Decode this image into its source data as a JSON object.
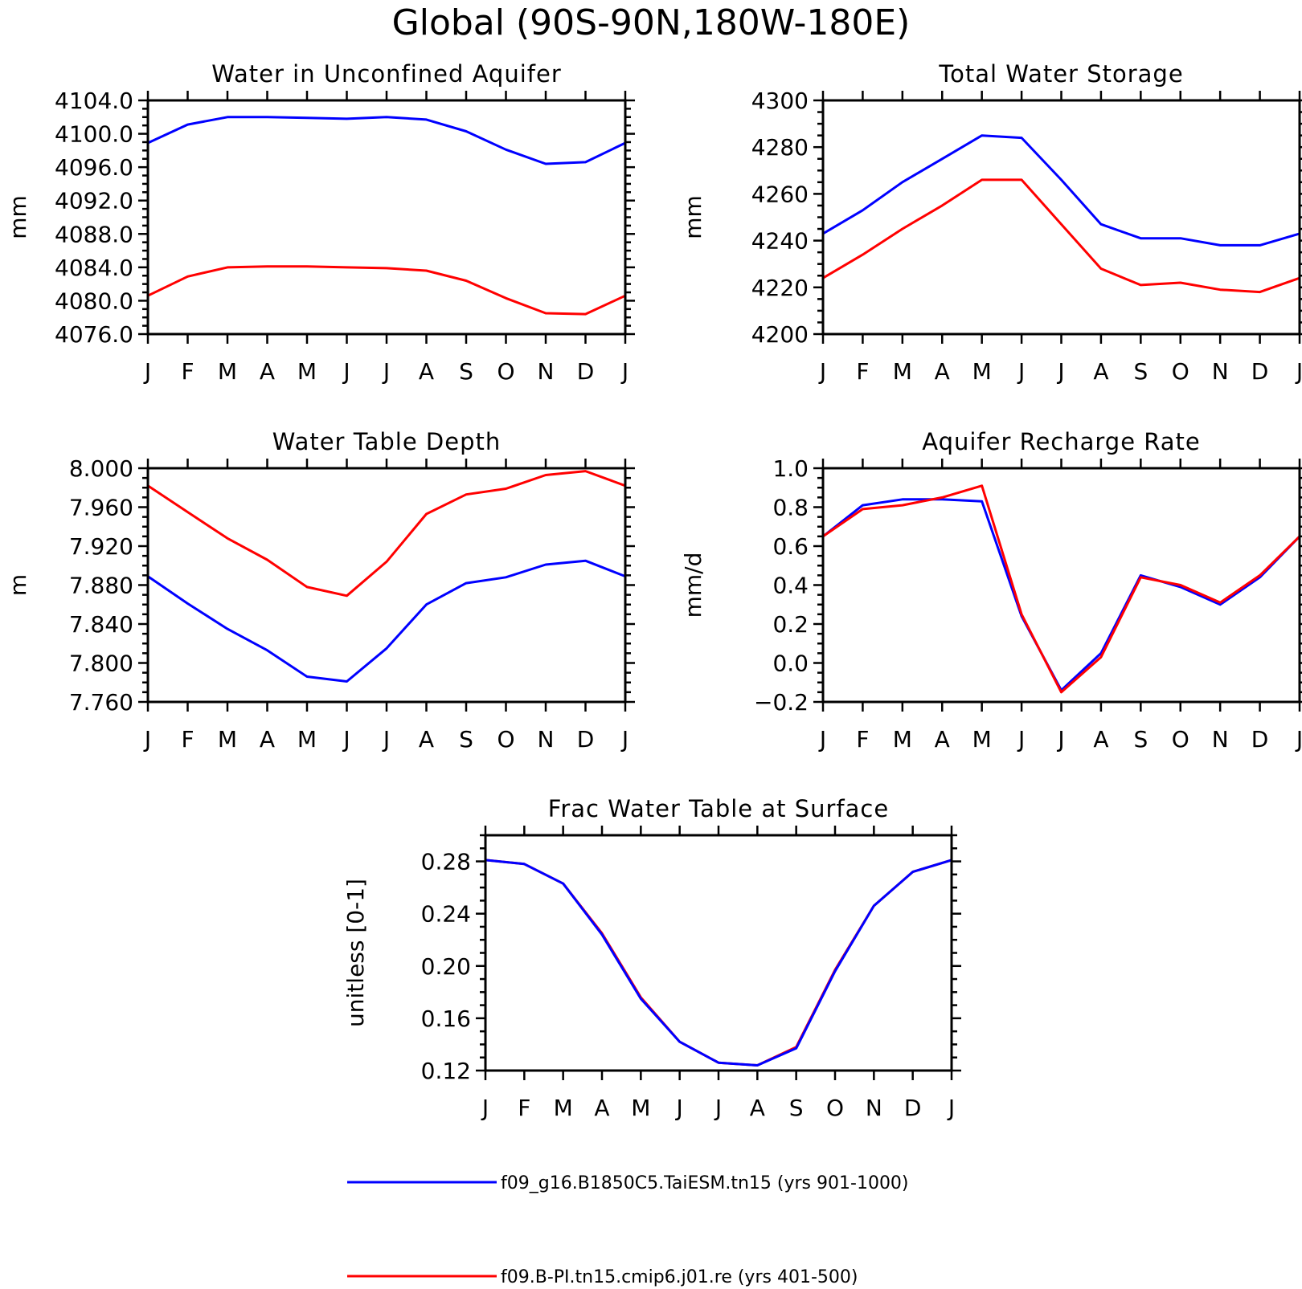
{
  "title": "Global (90S-90N,180W-180E)",
  "colors": {
    "series_1": "#0000ff",
    "series_2": "#ff0000",
    "axes": "#000000"
  },
  "legend": {
    "entries": [
      {
        "label": "f09_g16.B1850C5.TaiESM.tn15 (yrs 901-1000)",
        "color": "#0000ff"
      },
      {
        "label": "f09.B-PI.tn15.cmip6.j01.re (yrs 401-500)",
        "color": "#ff0000"
      }
    ]
  },
  "chart_data": [
    {
      "type": "line",
      "title": "Water in Unconfined Aquifer",
      "ylabel": "mm",
      "categories": [
        "J",
        "F",
        "M",
        "A",
        "M",
        "J",
        "J",
        "A",
        "S",
        "O",
        "N",
        "D",
        "J"
      ],
      "ylim": [
        4076,
        4104
      ],
      "yticks": [
        "4076.0",
        "4080.0",
        "4084.0",
        "4088.0",
        "4092.0",
        "4096.0",
        "4100.0",
        "4104.0"
      ],
      "series": [
        {
          "values": [
            4098.9,
            4101.1,
            4102.0,
            4102.0,
            4101.9,
            4101.8,
            4102.0,
            4101.7,
            4100.3,
            4098.1,
            4096.4,
            4096.6,
            4098.9
          ],
          "color": "#0000ff"
        },
        {
          "values": [
            4080.6,
            4082.9,
            4084.0,
            4084.1,
            4084.1,
            4084.0,
            4083.9,
            4083.6,
            4082.4,
            4080.3,
            4078.5,
            4078.4,
            4080.6
          ],
          "color": "#ff0000"
        }
      ]
    },
    {
      "type": "line",
      "title": "Total Water Storage",
      "ylabel": "mm",
      "categories": [
        "J",
        "F",
        "M",
        "A",
        "M",
        "J",
        "J",
        "A",
        "S",
        "O",
        "N",
        "D",
        "J"
      ],
      "ylim": [
        4200,
        4300
      ],
      "yticks": [
        "4200",
        "4220",
        "4240",
        "4260",
        "4280",
        "4300"
      ],
      "series": [
        {
          "values": [
            4243,
            4253,
            4265,
            4275,
            4285,
            4284,
            4266,
            4247,
            4241,
            4241,
            4238,
            4238,
            4243
          ],
          "color": "#0000ff"
        },
        {
          "values": [
            4224,
            4234,
            4245,
            4255,
            4266,
            4266,
            4247,
            4228,
            4221,
            4222,
            4219,
            4218,
            4224
          ],
          "color": "#ff0000"
        }
      ]
    },
    {
      "type": "line",
      "title": "Water Table Depth",
      "ylabel": "m",
      "categories": [
        "J",
        "F",
        "M",
        "A",
        "M",
        "J",
        "J",
        "A",
        "S",
        "O",
        "N",
        "D",
        "J"
      ],
      "ylim": [
        7.76,
        8.0
      ],
      "yticks": [
        "7.760",
        "7.800",
        "7.840",
        "7.880",
        "7.920",
        "7.960",
        "8.000"
      ],
      "series": [
        {
          "values": [
            7.889,
            7.861,
            7.835,
            7.813,
            7.786,
            7.781,
            7.815,
            7.86,
            7.882,
            7.888,
            7.901,
            7.905,
            7.889
          ],
          "color": "#0000ff"
        },
        {
          "values": [
            7.982,
            7.955,
            7.928,
            7.906,
            7.878,
            7.869,
            7.904,
            7.953,
            7.973,
            7.979,
            7.993,
            7.997,
            7.982
          ],
          "color": "#ff0000"
        }
      ]
    },
    {
      "type": "line",
      "title": "Aquifer Recharge Rate",
      "ylabel": "mm/d",
      "categories": [
        "J",
        "F",
        "M",
        "A",
        "M",
        "J",
        "J",
        "A",
        "S",
        "O",
        "N",
        "D",
        "J"
      ],
      "ylim": [
        -0.2,
        1.0
      ],
      "yticks": [
        "-0.2",
        "0.0",
        "0.2",
        "0.4",
        "0.6",
        "0.8",
        "1.0"
      ],
      "series": [
        {
          "values": [
            0.65,
            0.81,
            0.84,
            0.84,
            0.83,
            0.24,
            -0.14,
            0.05,
            0.45,
            0.39,
            0.3,
            0.44,
            0.65
          ],
          "color": "#0000ff"
        },
        {
          "values": [
            0.65,
            0.79,
            0.81,
            0.85,
            0.91,
            0.25,
            -0.15,
            0.03,
            0.44,
            0.4,
            0.31,
            0.45,
            0.65
          ],
          "color": "#ff0000"
        }
      ]
    },
    {
      "type": "line",
      "title": "Frac Water Table at Surface",
      "ylabel": "unitless [0-1]",
      "categories": [
        "J",
        "F",
        "M",
        "A",
        "M",
        "J",
        "J",
        "A",
        "S",
        "O",
        "N",
        "D",
        "J"
      ],
      "ylim": [
        0.12,
        0.3
      ],
      "yticks": [
        "0.12",
        "0.16",
        "0.20",
        "0.24",
        "0.28"
      ],
      "series": [
        {
          "values": [
            0.281,
            0.278,
            0.263,
            0.225,
            0.176,
            0.142,
            0.126,
            0.124,
            0.138,
            0.197,
            0.246,
            0.272,
            0.281
          ],
          "color": "#ff0000"
        },
        {
          "values": [
            0.281,
            0.278,
            0.263,
            0.224,
            0.175,
            0.142,
            0.126,
            0.124,
            0.137,
            0.196,
            0.246,
            0.272,
            0.281
          ],
          "color": "#0000ff"
        }
      ]
    }
  ]
}
